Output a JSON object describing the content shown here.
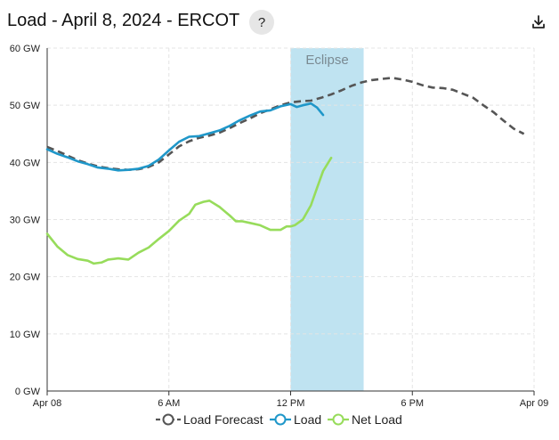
{
  "header": {
    "title": "Load - April 8, 2024 - ERCOT",
    "help_label": "?",
    "download_icon": "download-icon"
  },
  "colors": {
    "forecast": "#555555",
    "load": "#1f97c9",
    "net_load": "#97dc5b",
    "eclipse_band": "#bfe3f1",
    "grid": "#e4e4e4"
  },
  "chart_data": {
    "type": "line",
    "title": "",
    "xlabel": "",
    "ylabel": "",
    "x_unit": "hours since Apr 08 00:00",
    "xlim": [
      0,
      24
    ],
    "ylim": [
      0,
      60
    ],
    "x_ticks": [
      {
        "x": 0,
        "label": "Apr 08"
      },
      {
        "x": 6,
        "label": "6 AM"
      },
      {
        "x": 12,
        "label": "12 PM"
      },
      {
        "x": 18,
        "label": "6 PM"
      },
      {
        "x": 24,
        "label": "Apr 09"
      }
    ],
    "y_ticks": [
      {
        "y": 0,
        "label": "0 GW"
      },
      {
        "y": 10,
        "label": "10 GW"
      },
      {
        "y": 20,
        "label": "20 GW"
      },
      {
        "y": 30,
        "label": "30 GW"
      },
      {
        "y": 40,
        "label": "40 GW"
      },
      {
        "y": 50,
        "label": "50 GW"
      },
      {
        "y": 60,
        "label": "60 GW"
      }
    ],
    "grid": true,
    "legend_position": "bottom",
    "bands": [
      {
        "label": "Eclipse",
        "x0": 12.0,
        "x1": 15.6
      }
    ],
    "series": [
      {
        "name": "Load Forecast",
        "key": "forecast",
        "dashed": true,
        "points": [
          [
            0,
            42.7
          ],
          [
            0.5,
            42.0
          ],
          [
            1,
            41.2
          ],
          [
            1.5,
            40.4
          ],
          [
            2,
            39.8
          ],
          [
            2.5,
            39.3
          ],
          [
            3,
            39.0
          ],
          [
            3.5,
            38.8
          ],
          [
            4,
            38.7
          ],
          [
            4.5,
            38.8
          ],
          [
            5,
            39.2
          ],
          [
            5.5,
            40.0
          ],
          [
            6,
            41.4
          ],
          [
            6.5,
            42.8
          ],
          [
            7,
            43.7
          ],
          [
            7.5,
            44.3
          ],
          [
            8,
            44.7
          ],
          [
            8.5,
            45.2
          ],
          [
            9,
            46.0
          ],
          [
            9.5,
            46.9
          ],
          [
            10,
            47.7
          ],
          [
            10.5,
            48.6
          ],
          [
            11,
            49.3
          ],
          [
            11.5,
            50.0
          ],
          [
            12,
            50.5
          ],
          [
            12.5,
            50.7
          ],
          [
            13,
            50.8
          ],
          [
            13.5,
            51.3
          ],
          [
            14,
            51.9
          ],
          [
            14.5,
            52.6
          ],
          [
            15,
            53.4
          ],
          [
            15.5,
            54.0
          ],
          [
            16,
            54.4
          ],
          [
            16.5,
            54.6
          ],
          [
            17,
            54.8
          ],
          [
            17.5,
            54.5
          ],
          [
            18,
            54.1
          ],
          [
            18.5,
            53.5
          ],
          [
            19,
            53.1
          ],
          [
            19.5,
            53.0
          ],
          [
            20,
            52.7
          ],
          [
            20.5,
            52.0
          ],
          [
            21,
            51.3
          ],
          [
            21.5,
            50.0
          ],
          [
            22,
            48.8
          ],
          [
            22.5,
            47.3
          ],
          [
            23,
            45.9
          ],
          [
            23.5,
            45.0
          ]
        ]
      },
      {
        "name": "Load",
        "key": "load",
        "dashed": false,
        "points": [
          [
            0,
            42.3
          ],
          [
            0.5,
            41.5
          ],
          [
            1,
            40.9
          ],
          [
            1.5,
            40.2
          ],
          [
            2,
            39.7
          ],
          [
            2.5,
            39.1
          ],
          [
            3,
            38.9
          ],
          [
            3.5,
            38.6
          ],
          [
            4,
            38.7
          ],
          [
            4.5,
            38.9
          ],
          [
            5,
            39.4
          ],
          [
            5.5,
            40.5
          ],
          [
            6,
            42.1
          ],
          [
            6.5,
            43.6
          ],
          [
            7,
            44.5
          ],
          [
            7.5,
            44.6
          ],
          [
            8,
            45.1
          ],
          [
            8.5,
            45.6
          ],
          [
            9,
            46.4
          ],
          [
            9.5,
            47.4
          ],
          [
            10,
            48.2
          ],
          [
            10.5,
            48.9
          ],
          [
            11,
            49.1
          ],
          [
            11.5,
            49.8
          ],
          [
            12,
            50.2
          ],
          [
            12.3,
            49.7
          ],
          [
            12.6,
            50.0
          ],
          [
            13,
            50.3
          ],
          [
            13.3,
            49.6
          ],
          [
            13.6,
            48.3
          ]
        ]
      },
      {
        "name": "Net Load",
        "key": "net_load",
        "dashed": false,
        "points": [
          [
            0,
            27.5
          ],
          [
            0.5,
            25.3
          ],
          [
            1,
            23.8
          ],
          [
            1.5,
            23.1
          ],
          [
            2,
            22.8
          ],
          [
            2.3,
            22.3
          ],
          [
            2.7,
            22.5
          ],
          [
            3,
            23.0
          ],
          [
            3.5,
            23.2
          ],
          [
            4,
            23.0
          ],
          [
            4.5,
            24.2
          ],
          [
            5,
            25.1
          ],
          [
            5.5,
            26.6
          ],
          [
            6,
            28.0
          ],
          [
            6.5,
            29.8
          ],
          [
            7,
            31.0
          ],
          [
            7.3,
            32.6
          ],
          [
            7.7,
            33.1
          ],
          [
            8,
            33.3
          ],
          [
            8.5,
            32.2
          ],
          [
            9,
            30.7
          ],
          [
            9.3,
            29.7
          ],
          [
            9.6,
            29.7
          ],
          [
            10,
            29.4
          ],
          [
            10.5,
            29.0
          ],
          [
            11,
            28.2
          ],
          [
            11.5,
            28.2
          ],
          [
            11.8,
            28.8
          ],
          [
            12,
            28.8
          ],
          [
            12.2,
            29.0
          ],
          [
            12.6,
            30.0
          ],
          [
            13,
            32.5
          ],
          [
            13.3,
            35.5
          ],
          [
            13.6,
            38.5
          ],
          [
            14,
            40.8
          ]
        ]
      }
    ]
  }
}
